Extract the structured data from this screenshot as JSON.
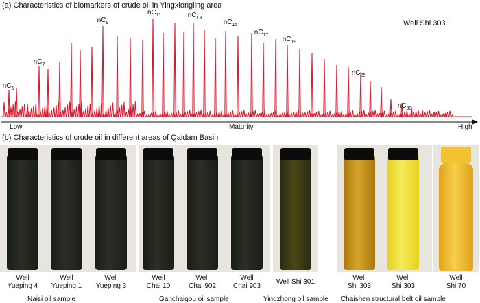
{
  "panel_a": {
    "title": "(a) Characteristics of biomarkers of crude oil in Yingxiongling area",
    "well": "Well Shi 303",
    "axis": {
      "low": "Low",
      "label": "Maturity",
      "high": "High"
    },
    "peak_labels": [
      {
        "base": "nC",
        "sub": "6"
      },
      {
        "base": "nC",
        "sub": "7"
      },
      {
        "base": "nC",
        "sub": "9"
      },
      {
        "base": "nC",
        "sub": "11"
      },
      {
        "base": "nC",
        "sub": "13"
      },
      {
        "base": "nC",
        "sub": "15"
      },
      {
        "base": "nC",
        "sub": "17"
      },
      {
        "base": "nC",
        "sub": "19"
      },
      {
        "base": "nC",
        "sub": "25"
      },
      {
        "base": "nC",
        "sub": "30"
      }
    ],
    "trace_color": "#e0162b"
  },
  "panel_b": {
    "title": "(b) Characteristics of crude oil in different areas of Qaidam Basin",
    "samples": [
      {
        "line1": "Well",
        "line2": "Yueping 4",
        "color": "dark"
      },
      {
        "line1": "Well",
        "line2": "Yueping 1",
        "color": "dark"
      },
      {
        "line1": "Well",
        "line2": "Yueping 3",
        "color": "dark"
      },
      {
        "line1": "Well",
        "line2": "Chai 10",
        "color": "dark"
      },
      {
        "line1": "Well",
        "line2": "Chai 902",
        "color": "dark"
      },
      {
        "line1": "Well",
        "line2": "Chai 903",
        "color": "dark"
      },
      {
        "line1": "Well Shi 301",
        "line2": "",
        "color": "dark-olive"
      },
      {
        "line1": "Well",
        "line2": "Shi 303",
        "color": "amber"
      },
      {
        "line1": "Well",
        "line2": "Shi 303",
        "color": "yellow"
      },
      {
        "line1": "Well",
        "line2": "Shi 70",
        "color": "golden"
      }
    ],
    "groups": [
      "Naisi oil sample",
      "Ganchaigou oil sample",
      "Yingzhong oil sample",
      "Chaishen structural belt oil sample"
    ]
  }
}
